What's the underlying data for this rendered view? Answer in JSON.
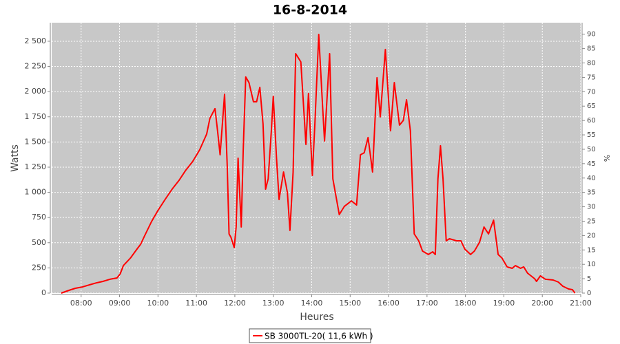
{
  "chart_data": {
    "type": "line",
    "title": "16-8-2014",
    "xlabel": "Heures",
    "ylabel": "Watts",
    "y2label": "%",
    "x": [
      "07:29",
      "07:41",
      "07:51",
      "08:02",
      "08:13",
      "08:24",
      "08:34",
      "08:45",
      "08:56",
      "09:01",
      "09:06",
      "09:17",
      "09:28",
      "09:33",
      "09:39",
      "09:50",
      "10:00",
      "10:11",
      "10:22",
      "10:33",
      "10:43",
      "10:54",
      "11:05",
      "11:16",
      "11:21",
      "11:29",
      "11:33",
      "11:37",
      "11:44",
      "11:48",
      "11:51",
      "11:54",
      "11:59",
      "12:02",
      "12:05",
      "12:10",
      "12:13",
      "12:17",
      "12:22",
      "12:29",
      "12:34",
      "12:39",
      "12:44",
      "12:48",
      "12:52",
      "12:57",
      "13:00",
      "13:05",
      "13:09",
      "13:16",
      "13:22",
      "13:26",
      "13:31",
      "13:35",
      "13:43",
      "13:51",
      "13:55",
      "14:01",
      "14:05",
      "14:11",
      "14:17",
      "14:20",
      "14:28",
      "14:33",
      "14:43",
      "14:51",
      "15:02",
      "15:10",
      "15:16",
      "15:22",
      "15:28",
      "15:35",
      "15:42",
      "15:47",
      "15:55",
      "16:03",
      "16:09",
      "16:17",
      "16:23",
      "16:28",
      "16:34",
      "16:40",
      "16:47",
      "16:53",
      "17:02",
      "17:09",
      "17:13",
      "17:17",
      "17:21",
      "17:25",
      "17:30",
      "17:35",
      "17:46",
      "17:53",
      "17:59",
      "18:08",
      "18:14",
      "18:22",
      "18:29",
      "18:36",
      "18:44",
      "18:51",
      "18:57",
      "19:05",
      "19:13",
      "19:18",
      "19:26",
      "19:31",
      "19:37",
      "19:48",
      "19:51",
      "19:57",
      "20:05",
      "20:17",
      "20:25",
      "20:32",
      "20:41",
      "20:47",
      "20:51"
    ],
    "series": [
      {
        "name": "SB 3000TL-20( 11,6 kWh )",
        "color": "#ff0000",
        "values": [
          0,
          27,
          48,
          61,
          82,
          102,
          116,
          137,
          150,
          191,
          273,
          348,
          444,
          485,
          567,
          710,
          820,
          929,
          1031,
          1120,
          1216,
          1305,
          1421,
          1578,
          1735,
          1831,
          1612,
          1373,
          1974,
          1270,
          587,
          553,
          451,
          656,
          1339,
          656,
          1407,
          2145,
          2090,
          1899,
          1899,
          2042,
          1680,
          1031,
          1134,
          1612,
          1954,
          1339,
          929,
          1202,
          997,
          622,
          1202,
          2377,
          2295,
          1475,
          1981,
          1168,
          1680,
          2568,
          1851,
          1510,
          2377,
          1134,
          779,
          861,
          915,
          874,
          1373,
          1393,
          1544,
          1202,
          2138,
          1749,
          2418,
          1612,
          2090,
          1667,
          1714,
          1919,
          1612,
          587,
          519,
          417,
          383,
          410,
          383,
          1134,
          1462,
          1134,
          519,
          540,
          519,
          519,
          437,
          383,
          417,
          505,
          656,
          587,
          724,
          383,
          348,
          260,
          246,
          273,
          246,
          260,
          198,
          143,
          116,
          171,
          137,
          130,
          109,
          68,
          41,
          34,
          0
        ]
      }
    ],
    "xlim": [
      "07:14",
      "21:00"
    ],
    "xticks": [
      "08:00",
      "09:00",
      "10:00",
      "11:00",
      "12:00",
      "13:00",
      "14:00",
      "15:00",
      "16:00",
      "17:00",
      "18:00",
      "19:00",
      "20:00",
      "21:00"
    ],
    "ylim": [
      0,
      2684
    ],
    "yticks": [
      0,
      250,
      500,
      750,
      {
        "value": 1000,
        "label": "1 000"
      },
      {
        "value": 1250,
        "label": "1 250"
      },
      {
        "value": 1500,
        "label": "1 500"
      },
      {
        "value": 1750,
        "label": "1 750"
      },
      {
        "value": 2000,
        "label": "2 000"
      },
      {
        "value": 2250,
        "label": "2 250"
      },
      {
        "value": 2500,
        "label": "2 500"
      }
    ],
    "y2lim": [
      0,
      94
    ],
    "y2ticks": [
      0,
      5,
      10,
      15,
      20,
      25,
      30,
      35,
      40,
      45,
      50,
      55,
      60,
      65,
      70,
      75,
      80,
      85,
      90
    ],
    "grid": true,
    "legend": "bottom"
  }
}
